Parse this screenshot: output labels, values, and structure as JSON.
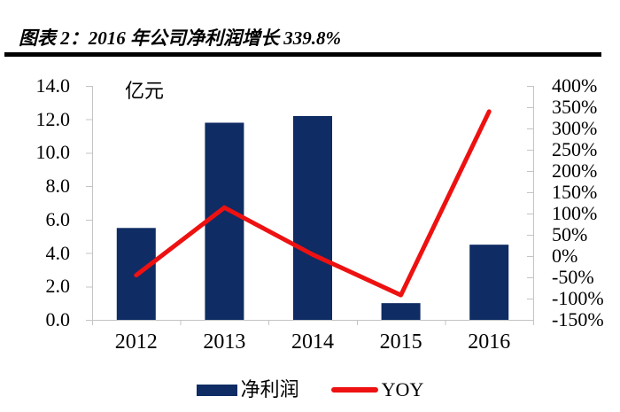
{
  "title": "图表 2：2016 年公司净利润增长 339.8%",
  "chart_data": {
    "type": "bar+line combo",
    "categories": [
      "2012",
      "2013",
      "2014",
      "2015",
      "2016"
    ],
    "series": [
      {
        "name": "净利润",
        "type": "bar",
        "axis": "left",
        "unit": "亿元",
        "values": [
          5.5,
          11.8,
          12.2,
          1.0,
          4.5
        ],
        "color": "#0f2c64"
      },
      {
        "name": "YOY",
        "type": "line",
        "axis": "right",
        "unit": "%",
        "values": [
          -45,
          114,
          3.5,
          -91.8,
          339.8
        ],
        "color": "#ee1111"
      }
    ],
    "left_axis": {
      "label": "亿元",
      "min": 0,
      "max": 14,
      "ticks": [
        "14.0",
        "12.0",
        "10.0",
        "8.0",
        "6.0",
        "4.0",
        "2.0",
        "0.0"
      ]
    },
    "right_axis": {
      "min": -150,
      "max": 400,
      "ticks": [
        "400%",
        "350%",
        "300%",
        "250%",
        "200%",
        "150%",
        "100%",
        "50%",
        "0%",
        "-50%",
        "-100%",
        "-150%"
      ]
    },
    "grid": false,
    "legend_position": "bottom",
    "annotation": "2016 YOY = 339.8% (stated in title)"
  },
  "colors": {
    "bar": "#0f2c64",
    "line": "#ee1111",
    "axis": "#c4c4c4",
    "text": "#000000",
    "rule": "#000000"
  }
}
